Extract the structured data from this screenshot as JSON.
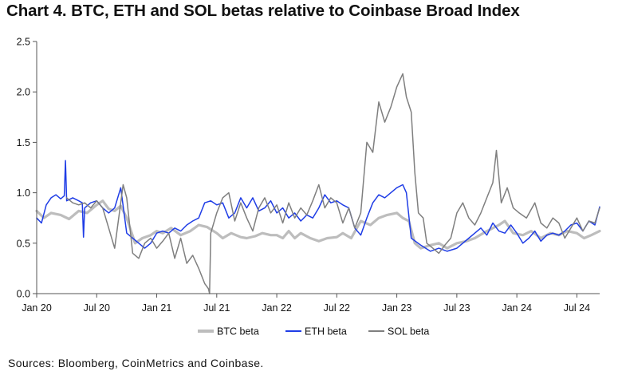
{
  "title": "Chart 4. BTC, ETH and SOL betas relative to Coinbase Broad Index",
  "source": "Sources: Bloomberg, CoinMetrics and Coinbase.",
  "colors": {
    "btc": "#bdbdbd",
    "eth": "#1f3de6",
    "sol": "#7f7f7f",
    "axis": "#555555"
  },
  "chart_data": {
    "type": "line",
    "title": "Chart 4. BTC, ETH and SOL betas relative to Coinbase Broad Index",
    "xlabel": "",
    "ylabel": "",
    "xlim": [
      2020.0,
      2024.69
    ],
    "ylim": [
      0,
      2.5
    ],
    "yticks": [
      0.0,
      0.5,
      1.0,
      1.5,
      2.0,
      2.5
    ],
    "ytick_labels": [
      "0.0",
      "0.5",
      "1.0",
      "1.5",
      "2.0",
      "2.5"
    ],
    "xticks": [
      2020.0,
      2020.5,
      2021.0,
      2021.5,
      2022.0,
      2022.5,
      2023.0,
      2023.5,
      2024.0,
      2024.5
    ],
    "xtick_labels": [
      "Jan 20",
      "Jul 20",
      "Jan 21",
      "Jul 21",
      "Jan 22",
      "Jul 22",
      "Jan 23",
      "Jul 23",
      "Jan 24",
      "Jul 24"
    ],
    "legend": "bottom",
    "grid": false,
    "series": [
      {
        "name": "BTC beta",
        "x": [
          2020.0,
          2020.06,
          2020.12,
          2020.2,
          2020.27,
          2020.35,
          2020.42,
          2020.5,
          2020.55,
          2020.6,
          2020.65,
          2020.7,
          2020.75,
          2020.82,
          2020.88,
          2020.95,
          2021.0,
          2021.05,
          2021.12,
          2021.2,
          2021.28,
          2021.35,
          2021.42,
          2021.5,
          2021.55,
          2021.62,
          2021.7,
          2021.75,
          2021.82,
          2021.88,
          2021.95,
          2022.0,
          2022.05,
          2022.1,
          2022.15,
          2022.2,
          2022.28,
          2022.35,
          2022.42,
          2022.5,
          2022.55,
          2022.62,
          2022.7,
          2022.78,
          2022.85,
          2022.92,
          2023.0,
          2023.05,
          2023.1,
          2023.15,
          2023.2,
          2023.28,
          2023.35,
          2023.42,
          2023.5,
          2023.58,
          2023.65,
          2023.72,
          2023.8,
          2023.85,
          2023.9,
          2023.97,
          2024.05,
          2024.12,
          2024.2,
          2024.28,
          2024.35,
          2024.42,
          2024.5,
          2024.56,
          2024.62,
          2024.69
        ],
        "values": [
          0.82,
          0.75,
          0.8,
          0.78,
          0.74,
          0.82,
          0.8,
          0.88,
          0.92,
          0.84,
          0.82,
          0.87,
          0.75,
          0.5,
          0.55,
          0.58,
          0.62,
          0.6,
          0.65,
          0.58,
          0.62,
          0.68,
          0.66,
          0.6,
          0.55,
          0.6,
          0.56,
          0.55,
          0.57,
          0.6,
          0.58,
          0.58,
          0.55,
          0.62,
          0.55,
          0.6,
          0.55,
          0.52,
          0.55,
          0.56,
          0.6,
          0.55,
          0.72,
          0.68,
          0.75,
          0.78,
          0.8,
          0.75,
          0.72,
          0.5,
          0.45,
          0.48,
          0.5,
          0.45,
          0.5,
          0.52,
          0.55,
          0.6,
          0.65,
          0.68,
          0.72,
          0.6,
          0.58,
          0.62,
          0.55,
          0.6,
          0.58,
          0.62,
          0.6,
          0.55,
          0.58,
          0.62
        ]
      },
      {
        "name": "ETH beta",
        "x": [
          2020.0,
          2020.04,
          2020.08,
          2020.12,
          2020.16,
          2020.2,
          2020.23,
          2020.24,
          2020.25,
          2020.3,
          2020.35,
          2020.38,
          2020.39,
          2020.4,
          2020.45,
          2020.5,
          2020.55,
          2020.6,
          2020.65,
          2020.7,
          2020.75,
          2020.8,
          2020.85,
          2020.9,
          2020.95,
          2021.0,
          2021.05,
          2021.1,
          2021.15,
          2021.2,
          2021.25,
          2021.3,
          2021.35,
          2021.4,
          2021.45,
          2021.5,
          2021.55,
          2021.6,
          2021.65,
          2021.7,
          2021.75,
          2021.8,
          2021.85,
          2021.9,
          2021.95,
          2022.0,
          2022.05,
          2022.1,
          2022.15,
          2022.2,
          2022.25,
          2022.3,
          2022.35,
          2022.4,
          2022.45,
          2022.5,
          2022.55,
          2022.6,
          2022.65,
          2022.7,
          2022.75,
          2022.8,
          2022.85,
          2022.9,
          2022.95,
          2023.0,
          2023.05,
          2023.08,
          2023.12,
          2023.2,
          2023.28,
          2023.35,
          2023.42,
          2023.5,
          2023.55,
          2023.6,
          2023.65,
          2023.7,
          2023.75,
          2023.8,
          2023.85,
          2023.9,
          2023.95,
          2024.0,
          2024.05,
          2024.1,
          2024.15,
          2024.2,
          2024.25,
          2024.3,
          2024.35,
          2024.4,
          2024.45,
          2024.5,
          2024.55,
          2024.6,
          2024.65,
          2024.69
        ],
        "values": [
          0.75,
          0.7,
          0.88,
          0.95,
          0.98,
          0.94,
          0.97,
          1.32,
          0.92,
          0.95,
          0.92,
          0.9,
          0.56,
          0.85,
          0.9,
          0.92,
          0.85,
          0.8,
          0.85,
          1.05,
          0.6,
          0.55,
          0.5,
          0.45,
          0.5,
          0.6,
          0.62,
          0.6,
          0.65,
          0.62,
          0.68,
          0.72,
          0.75,
          0.9,
          0.92,
          0.88,
          0.9,
          0.75,
          0.8,
          0.95,
          0.85,
          0.95,
          0.82,
          0.85,
          0.92,
          0.8,
          0.85,
          0.75,
          0.8,
          0.72,
          0.78,
          0.75,
          0.85,
          0.98,
          0.9,
          0.92,
          0.88,
          0.85,
          0.65,
          0.58,
          0.75,
          0.9,
          0.98,
          0.95,
          1.0,
          1.05,
          1.08,
          1.0,
          0.55,
          0.48,
          0.42,
          0.45,
          0.42,
          0.45,
          0.5,
          0.55,
          0.6,
          0.65,
          0.58,
          0.7,
          0.62,
          0.6,
          0.68,
          0.6,
          0.5,
          0.55,
          0.62,
          0.52,
          0.58,
          0.6,
          0.58,
          0.62,
          0.68,
          0.7,
          0.62,
          0.72,
          0.68,
          0.86
        ]
      },
      {
        "name": "SOL beta",
        "x": [
          2020.25,
          2020.3,
          2020.35,
          2020.4,
          2020.45,
          2020.5,
          2020.55,
          2020.6,
          2020.65,
          2020.7,
          2020.72,
          2020.75,
          2020.8,
          2020.85,
          2020.9,
          2020.95,
          2021.0,
          2021.05,
          2021.1,
          2021.15,
          2021.2,
          2021.25,
          2021.3,
          2021.35,
          2021.4,
          2021.43,
          2021.44,
          2021.45,
          2021.5,
          2021.55,
          2021.6,
          2021.65,
          2021.7,
          2021.75,
          2021.8,
          2021.85,
          2021.9,
          2021.95,
          2022.0,
          2022.05,
          2022.1,
          2022.15,
          2022.2,
          2022.25,
          2022.3,
          2022.35,
          2022.4,
          2022.45,
          2022.5,
          2022.55,
          2022.6,
          2022.65,
          2022.7,
          2022.75,
          2022.8,
          2022.85,
          2022.9,
          2022.95,
          2023.0,
          2023.05,
          2023.08,
          2023.12,
          2023.15,
          2023.18,
          2023.22,
          2023.25,
          2023.3,
          2023.35,
          2023.4,
          2023.45,
          2023.5,
          2023.55,
          2023.6,
          2023.65,
          2023.7,
          2023.75,
          2023.8,
          2023.83,
          2023.87,
          2023.92,
          2023.97,
          2024.02,
          2024.08,
          2024.15,
          2024.2,
          2024.25,
          2024.3,
          2024.35,
          2024.4,
          2024.45,
          2024.5,
          2024.55,
          2024.6,
          2024.65,
          2024.69
        ],
        "values": [
          0.95,
          0.9,
          0.88,
          0.9,
          0.85,
          0.92,
          0.85,
          0.65,
          0.45,
          0.9,
          1.08,
          0.95,
          0.4,
          0.35,
          0.5,
          0.55,
          0.45,
          0.52,
          0.6,
          0.35,
          0.55,
          0.3,
          0.38,
          0.25,
          0.1,
          0.05,
          0.0,
          0.6,
          0.8,
          0.95,
          1.0,
          0.72,
          0.9,
          0.75,
          0.62,
          0.85,
          0.95,
          0.8,
          0.88,
          0.7,
          0.9,
          0.75,
          0.85,
          0.78,
          0.92,
          1.08,
          0.85,
          0.95,
          0.9,
          0.7,
          0.85,
          0.65,
          0.8,
          1.5,
          1.4,
          1.9,
          1.7,
          1.85,
          2.05,
          2.18,
          1.95,
          1.8,
          1.2,
          0.8,
          0.75,
          0.5,
          0.45,
          0.4,
          0.48,
          0.55,
          0.8,
          0.9,
          0.75,
          0.68,
          0.8,
          0.95,
          1.1,
          1.42,
          0.9,
          1.05,
          0.85,
          0.8,
          0.75,
          0.9,
          0.7,
          0.65,
          0.75,
          0.7,
          0.55,
          0.65,
          0.75,
          0.62,
          0.72,
          0.7,
          0.85
        ]
      }
    ]
  }
}
